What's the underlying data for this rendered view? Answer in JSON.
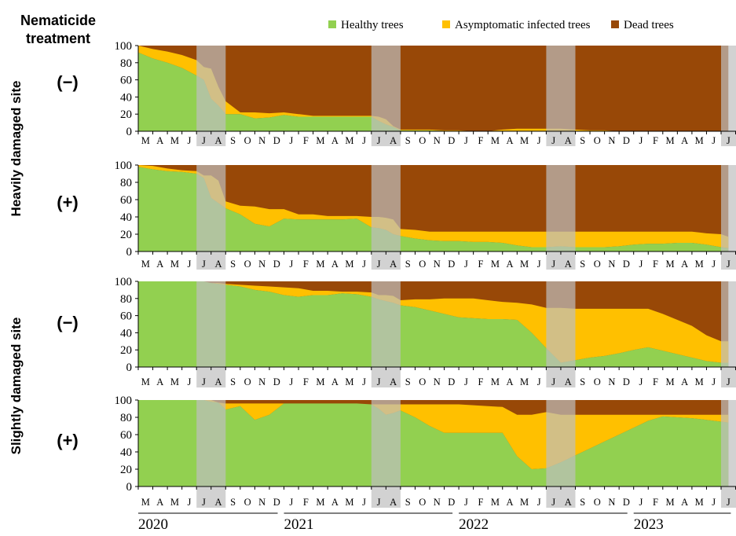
{
  "title": {
    "line1": "Nematicide",
    "line2": "treatment"
  },
  "site_labels": [
    "Heavily damaged site",
    "Slightly damaged site"
  ],
  "legend": [
    {
      "label": "Healthy trees",
      "color": "#92D050"
    },
    {
      "label": "Asymptomatic infected trees",
      "color": "#FFC000"
    },
    {
      "label": "Dead trees",
      "color": "#984807"
    }
  ],
  "highlight_color": "#BFBFBF",
  "months": [
    "M",
    "A",
    "M",
    "J",
    "J",
    "A",
    "S",
    "O",
    "N",
    "D",
    "J",
    "F",
    "M",
    "A",
    "M",
    "J",
    "J",
    "A",
    "S",
    "O",
    "N",
    "D",
    "J",
    "F",
    "M",
    "A",
    "M",
    "J",
    "J",
    "A",
    "S",
    "O",
    "N",
    "D",
    "J",
    "F",
    "M",
    "A",
    "M",
    "J",
    "J"
  ],
  "years": [
    "2020",
    "2021",
    "2022",
    "2023"
  ],
  "chart_data": [
    {
      "type": "area",
      "stacked": true,
      "site": "Heavily damaged site",
      "treatment": "(−)",
      "ylim": [
        0,
        100
      ],
      "yticks": [
        0,
        20,
        40,
        60,
        80,
        100
      ],
      "x": [
        0,
        1,
        2,
        3,
        4,
        4.5,
        5,
        5.5,
        6,
        7,
        8,
        9,
        10,
        11,
        12,
        13,
        14,
        15,
        16,
        16.5,
        17,
        17.5,
        18,
        19,
        20,
        21,
        22,
        23,
        24,
        25,
        26,
        27,
        28,
        29,
        30,
        31,
        32,
        33,
        34,
        35,
        36,
        37,
        38,
        39,
        40,
        40.5
      ],
      "series": [
        {
          "name": "Healthy trees",
          "values": [
            92,
            85,
            80,
            74,
            65,
            60,
            38,
            30,
            20,
            20,
            15,
            16,
            19,
            17,
            17,
            17,
            17,
            17,
            17,
            12,
            8,
            5,
            1,
            1,
            1,
            0.5,
            0,
            0,
            0,
            0,
            0,
            0,
            0,
            0,
            0,
            0,
            0,
            0,
            0,
            0,
            0,
            0,
            0,
            0,
            0,
            0
          ]
        },
        {
          "name": "Asymptomatic infected trees",
          "values": [
            8,
            11,
            13,
            15,
            18,
            15,
            35,
            22,
            15,
            2,
            7,
            5,
            3,
            3,
            1,
            1,
            1,
            1,
            1,
            5,
            6,
            1,
            1,
            1,
            1,
            0.5,
            1,
            0,
            0,
            2,
            3,
            3,
            3,
            3,
            2,
            1,
            1,
            0,
            0,
            0,
            0,
            0,
            0,
            0,
            0,
            0
          ]
        }
      ]
    },
    {
      "type": "area",
      "stacked": true,
      "site": "Heavily damaged site",
      "treatment": "(+)",
      "ylim": [
        0,
        100
      ],
      "yticks": [
        0,
        20,
        40,
        60,
        80,
        100
      ],
      "x": [
        0,
        1,
        2,
        3,
        4,
        4.5,
        5,
        5.5,
        6,
        7,
        8,
        9,
        10,
        11,
        12,
        13,
        14,
        15,
        16,
        16.5,
        17,
        17.5,
        18,
        19,
        20,
        21,
        22,
        23,
        24,
        25,
        26,
        27,
        28,
        29,
        30,
        31,
        32,
        33,
        34,
        35,
        36,
        37,
        38,
        39,
        40,
        40.5
      ],
      "series": [
        {
          "name": "Healthy trees",
          "values": [
            98,
            95,
            93,
            92,
            90,
            85,
            62,
            56,
            50,
            43,
            32,
            29,
            38,
            37,
            37,
            37,
            37,
            38,
            28,
            27,
            25,
            20,
            18,
            15,
            13,
            12,
            12,
            11,
            11,
            10,
            7,
            5,
            5,
            6,
            5,
            5,
            5,
            6,
            8,
            9,
            9,
            10,
            10,
            8,
            5,
            4
          ]
        },
        {
          "name": "Asymptomatic infected trees",
          "values": [
            2,
            4,
            3,
            2,
            3,
            3,
            26,
            26,
            8,
            10,
            20,
            20,
            11,
            6,
            6,
            4,
            4,
            3,
            12,
            13,
            14,
            17,
            8,
            10,
            10,
            11,
            11,
            12,
            12,
            13,
            16,
            18,
            18,
            17,
            18,
            18,
            18,
            17,
            15,
            14,
            14,
            13,
            13,
            13,
            15,
            13
          ]
        }
      ]
    },
    {
      "type": "area",
      "stacked": true,
      "site": "Slightly damaged site",
      "treatment": "(−)",
      "ylim": [
        0,
        100
      ],
      "yticks": [
        0,
        20,
        40,
        60,
        80,
        100
      ],
      "x": [
        0,
        1,
        2,
        3,
        4,
        4.5,
        5,
        5.5,
        6,
        7,
        8,
        9,
        10,
        11,
        12,
        13,
        14,
        15,
        16,
        16.5,
        17,
        17.5,
        18,
        19,
        20,
        21,
        22,
        23,
        24,
        25,
        26,
        27,
        28,
        29,
        30,
        31,
        32,
        33,
        34,
        35,
        36,
        37,
        38,
        39,
        40,
        40.5
      ],
      "series": [
        {
          "name": "Healthy trees",
          "values": [
            100,
            100,
            100,
            100,
            100,
            100,
            98,
            97,
            96,
            94,
            90,
            88,
            84,
            82,
            84,
            84,
            86,
            85,
            82,
            79,
            77,
            75,
            72,
            70,
            66,
            62,
            58,
            57,
            56,
            56,
            55,
            40,
            22,
            5,
            8,
            11,
            13,
            16,
            20,
            23,
            19,
            15,
            11,
            7,
            5,
            5
          ]
        },
        {
          "name": "Asymptomatic infected trees",
          "values": [
            0,
            0,
            0,
            0,
            0,
            0,
            0,
            1,
            1,
            2,
            5,
            6,
            9,
            10,
            5,
            5,
            2,
            3,
            5,
            5,
            7,
            8,
            6,
            9,
            13,
            18,
            22,
            23,
            22,
            20,
            20,
            33,
            47,
            64,
            60,
            57,
            55,
            52,
            48,
            45,
            43,
            40,
            37,
            30,
            25,
            25
          ]
        }
      ]
    },
    {
      "type": "area",
      "stacked": true,
      "site": "Slightly damaged site",
      "treatment": "(+)",
      "ylim": [
        0,
        100
      ],
      "yticks": [
        0,
        20,
        40,
        60,
        80,
        100
      ],
      "x": [
        0,
        1,
        2,
        3,
        4,
        4.5,
        5,
        5.5,
        6,
        7,
        8,
        9,
        10,
        11,
        12,
        13,
        14,
        15,
        16,
        16.5,
        17,
        17.5,
        18,
        19,
        20,
        21,
        22,
        23,
        24,
        25,
        26,
        27,
        28,
        29,
        30,
        31,
        32,
        33,
        34,
        35,
        36,
        37,
        38,
        39,
        40,
        40.5
      ],
      "series": [
        {
          "name": "Healthy trees",
          "values": [
            100,
            100,
            100,
            100,
            100,
            100,
            98,
            97,
            89,
            93,
            77,
            83,
            96,
            96,
            96,
            96,
            96,
            96,
            95,
            90,
            83,
            85,
            88,
            80,
            70,
            62,
            62,
            62,
            62,
            62,
            35,
            20,
            21,
            28,
            36,
            44,
            52,
            60,
            68,
            76,
            81,
            80,
            79,
            77,
            75,
            74
          ]
        },
        {
          "name": "Asymptomatic infected trees",
          "values": [
            0,
            0,
            0,
            0,
            0,
            0,
            2,
            0,
            7,
            3,
            19,
            13,
            0,
            0,
            0,
            0,
            0,
            0,
            0,
            5,
            12,
            10,
            7,
            15,
            25,
            33,
            33,
            32,
            31,
            30,
            48,
            63,
            65,
            55,
            47,
            39,
            31,
            23,
            15,
            7,
            2,
            3,
            4,
            6,
            8,
            9
          ]
        }
      ]
    }
  ]
}
